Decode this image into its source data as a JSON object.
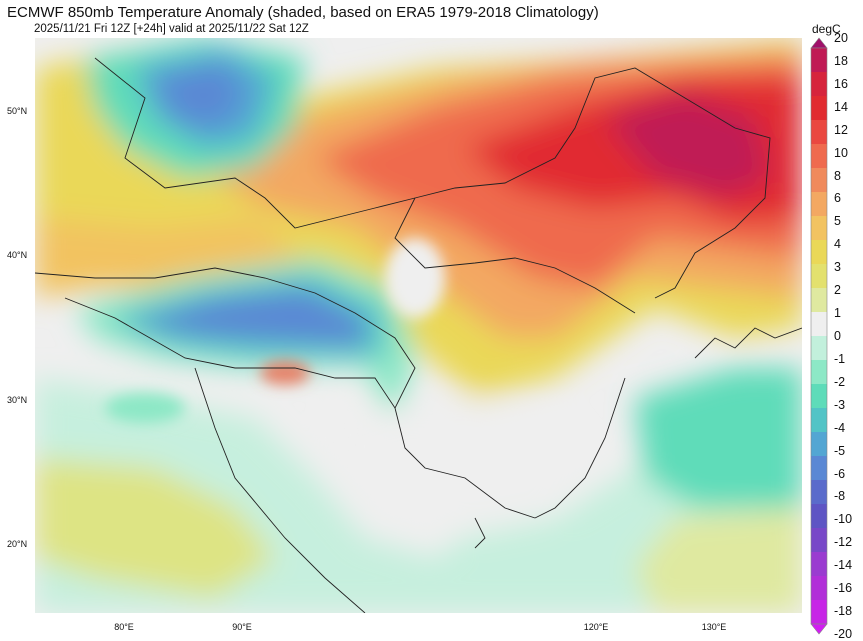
{
  "header": {
    "title": "ECMWF 850mb Temperature Anomaly (shaded, based on ERA5 1979-2018 Climatology)",
    "subtitle": "2025/11/21 Fri 12Z [+24h] valid at 2025/11/22 Sat 12Z"
  },
  "map": {
    "lat_labels": [
      "50°N",
      "40°N",
      "30°N",
      "20°N"
    ],
    "lon_labels": [
      "80°E",
      "90°E",
      "120°E",
      "130°E"
    ],
    "background_color": "#efefef",
    "border_color": "#222222"
  },
  "colorbar": {
    "unit": "degC",
    "levels": [
      "20",
      "18",
      "16",
      "14",
      "12",
      "10",
      "8",
      "6",
      "5",
      "4",
      "3",
      "2",
      "1",
      "0",
      "-1",
      "-2",
      "-3",
      "-4",
      "-5",
      "-6",
      "-8",
      "-10",
      "-12",
      "-14",
      "-16",
      "-18",
      "-20"
    ],
    "colors": [
      "#a0106a",
      "#c01a55",
      "#d6243c",
      "#e12b30",
      "#ea4840",
      "#ef6a4e",
      "#f08a5c",
      "#f3a862",
      "#f2c361",
      "#ead858",
      "#e3e16e",
      "#dfe9a0",
      "#efefef",
      "#c2f0dc",
      "#8de8c6",
      "#5edcb9",
      "#52c4c6",
      "#53a6d3",
      "#5a88d4",
      "#5a6bcb",
      "#5e55c4",
      "#7848c8",
      "#9a3bd0",
      "#b12fd8",
      "#c725e6",
      "#d21ef2"
    ]
  }
}
